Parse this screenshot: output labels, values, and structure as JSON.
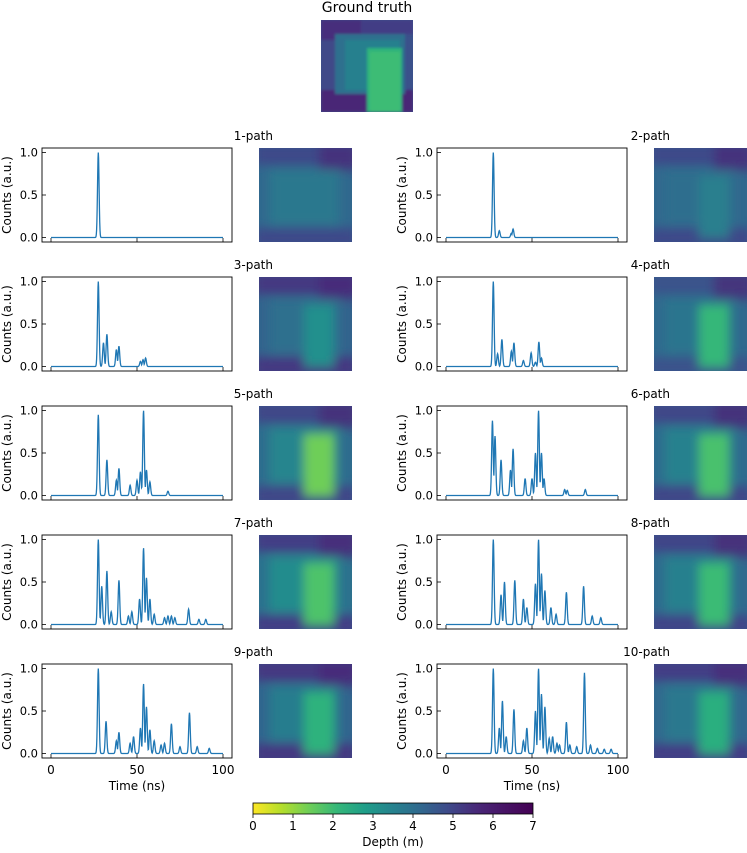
{
  "figure": {
    "ground_truth_title": "Ground truth",
    "ylabel": "Counts (a.u.)",
    "xlabel": "Time (ns)",
    "xticks": [
      "0",
      "50",
      "100"
    ],
    "yticks": [
      "0.0",
      "0.5",
      "1.0"
    ],
    "line_color": "#1f77b4",
    "colorbar": {
      "label": "Depth (m)",
      "ticks": [
        "0",
        "1",
        "2",
        "3",
        "4",
        "5",
        "6",
        "7"
      ],
      "colormap": "viridis_r",
      "range": [
        0,
        7
      ]
    }
  },
  "chart_data": [
    {
      "type": "line",
      "title": "1-path",
      "xlim": [
        0,
        100
      ],
      "ylim": [
        0,
        1
      ],
      "peaks": [
        [
          27.5,
          1.0
        ]
      ]
    },
    {
      "type": "line",
      "title": "2-path",
      "xlim": [
        0,
        100
      ],
      "ylim": [
        0,
        1
      ],
      "peaks": [
        [
          27.5,
          1.0
        ],
        [
          31,
          0.08
        ],
        [
          39,
          0.1
        ],
        [
          38,
          0.05
        ]
      ]
    },
    {
      "type": "line",
      "title": "3-path",
      "xlim": [
        0,
        100
      ],
      "ylim": [
        0,
        1
      ],
      "peaks": [
        [
          27.5,
          1.0
        ],
        [
          30.5,
          0.28
        ],
        [
          32.5,
          0.38
        ],
        [
          38,
          0.2
        ],
        [
          39.5,
          0.24
        ],
        [
          52,
          0.06
        ],
        [
          53.5,
          0.08
        ],
        [
          55,
          0.1
        ]
      ]
    },
    {
      "type": "line",
      "title": "4-path",
      "xlim": [
        0,
        100
      ],
      "ylim": [
        0,
        1
      ],
      "peaks": [
        [
          27.5,
          1.0
        ],
        [
          30,
          0.15
        ],
        [
          32.5,
          0.32
        ],
        [
          38,
          0.18
        ],
        [
          39.5,
          0.28
        ],
        [
          45,
          0.07
        ],
        [
          49.5,
          0.16
        ],
        [
          52,
          0.05
        ],
        [
          54,
          0.29
        ],
        [
          55.5,
          0.1
        ]
      ]
    },
    {
      "type": "line",
      "title": "5-path",
      "xlim": [
        0,
        100
      ],
      "ylim": [
        0,
        1
      ],
      "peaks": [
        [
          27.5,
          0.95
        ],
        [
          32.5,
          0.42
        ],
        [
          38,
          0.18
        ],
        [
          39.5,
          0.32
        ],
        [
          46,
          0.12
        ],
        [
          50,
          0.18
        ],
        [
          52,
          0.28
        ],
        [
          53.8,
          1.0
        ],
        [
          55.5,
          0.3
        ],
        [
          57.5,
          0.16
        ],
        [
          68,
          0.05
        ]
      ]
    },
    {
      "type": "line",
      "title": "6-path",
      "xlim": [
        0,
        100
      ],
      "ylim": [
        0,
        1
      ],
      "peaks": [
        [
          27,
          0.88
        ],
        [
          28.5,
          0.7
        ],
        [
          32,
          0.42
        ],
        [
          37.5,
          0.3
        ],
        [
          39,
          0.55
        ],
        [
          46,
          0.2
        ],
        [
          50,
          0.2
        ],
        [
          52,
          0.5
        ],
        [
          53.8,
          1.0
        ],
        [
          55.5,
          0.5
        ],
        [
          57,
          0.2
        ],
        [
          69,
          0.07
        ],
        [
          70.5,
          0.06
        ],
        [
          81,
          0.07
        ]
      ]
    },
    {
      "type": "line",
      "title": "7-path",
      "xlim": [
        0,
        100
      ],
      "ylim": [
        0,
        1
      ],
      "peaks": [
        [
          27.5,
          1.0
        ],
        [
          29.5,
          0.45
        ],
        [
          32.5,
          0.63
        ],
        [
          35,
          0.15
        ],
        [
          39.5,
          0.52
        ],
        [
          45,
          0.1
        ],
        [
          47,
          0.15
        ],
        [
          51.5,
          0.3
        ],
        [
          53.8,
          0.9
        ],
        [
          55.5,
          0.55
        ],
        [
          57.5,
          0.3
        ],
        [
          60,
          0.12
        ],
        [
          66,
          0.08
        ],
        [
          68,
          0.1
        ],
        [
          70,
          0.1
        ],
        [
          72,
          0.08
        ],
        [
          80,
          0.18
        ],
        [
          86,
          0.06
        ],
        [
          90,
          0.06
        ]
      ]
    },
    {
      "type": "line",
      "title": "8-path",
      "xlim": [
        0,
        100
      ],
      "ylim": [
        0,
        1
      ],
      "peaks": [
        [
          27.5,
          1.0
        ],
        [
          32,
          0.35
        ],
        [
          34,
          0.5
        ],
        [
          40,
          0.52
        ],
        [
          45,
          0.3
        ],
        [
          47,
          0.2
        ],
        [
          52,
          0.48
        ],
        [
          53.8,
          1.0
        ],
        [
          55.5,
          0.6
        ],
        [
          57.5,
          0.4
        ],
        [
          61,
          0.2
        ],
        [
          64,
          0.12
        ],
        [
          70,
          0.38
        ],
        [
          80,
          0.45
        ],
        [
          85,
          0.1
        ],
        [
          90,
          0.08
        ]
      ]
    },
    {
      "type": "line",
      "title": "9-path",
      "xlim": [
        0,
        100
      ],
      "ylim": [
        0,
        1
      ],
      "peaks": [
        [
          27.5,
          1.0
        ],
        [
          32,
          0.38
        ],
        [
          38,
          0.15
        ],
        [
          39.5,
          0.25
        ],
        [
          46,
          0.12
        ],
        [
          48,
          0.2
        ],
        [
          52,
          0.3
        ],
        [
          53.8,
          0.82
        ],
        [
          55.5,
          0.55
        ],
        [
          57.5,
          0.28
        ],
        [
          60,
          0.15
        ],
        [
          64,
          0.1
        ],
        [
          66,
          0.12
        ],
        [
          70,
          0.35
        ],
        [
          75,
          0.08
        ],
        [
          80.5,
          0.48
        ],
        [
          85,
          0.08
        ],
        [
          92,
          0.06
        ]
      ]
    },
    {
      "type": "line",
      "title": "10-path",
      "xlim": [
        0,
        100
      ],
      "ylim": [
        0,
        1
      ],
      "peaks": [
        [
          27.5,
          1.0
        ],
        [
          31,
          0.3
        ],
        [
          32.8,
          0.62
        ],
        [
          35,
          0.2
        ],
        [
          39.5,
          0.52
        ],
        [
          45,
          0.15
        ],
        [
          47,
          0.3
        ],
        [
          52,
          0.5
        ],
        [
          53.8,
          1.0
        ],
        [
          55.5,
          0.7
        ],
        [
          57.5,
          0.55
        ],
        [
          60,
          0.18
        ],
        [
          62,
          0.2
        ],
        [
          64.5,
          0.12
        ],
        [
          66,
          0.1
        ],
        [
          70,
          0.37
        ],
        [
          72,
          0.1
        ],
        [
          76,
          0.08
        ],
        [
          80.5,
          0.95
        ],
        [
          84,
          0.1
        ],
        [
          88,
          0.06
        ],
        [
          92,
          0.05
        ],
        [
          96,
          0.05
        ]
      ]
    }
  ]
}
